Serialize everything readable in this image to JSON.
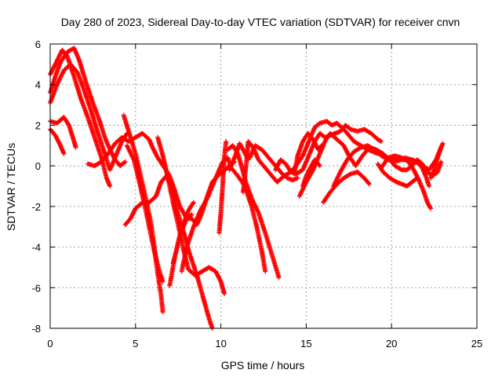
{
  "chart_data": {
    "type": "scatter",
    "title": "Day 280 of 2023, Sidereal Day-to-day VTEC variation (SDTVAR) for receiver cnvn",
    "xlabel": "GPS time / hours",
    "ylabel": "SDTVAR / TECUs",
    "xlim": [
      0,
      25
    ],
    "ylim": [
      -8,
      6
    ],
    "x_ticks": [
      0,
      5,
      10,
      15,
      20,
      25
    ],
    "y_ticks": [
      -8,
      -6,
      -4,
      -2,
      0,
      2,
      4,
      6
    ],
    "grid": true,
    "marker": "plus",
    "color": "#ff0000",
    "tracks": [
      [
        [
          0.0,
          4.5
        ],
        [
          0.3,
          5.0
        ],
        [
          0.7,
          5.7
        ],
        [
          1.0,
          5.4
        ],
        [
          1.4,
          4.4
        ],
        [
          1.8,
          3.3
        ],
        [
          2.2,
          2.4
        ],
        [
          2.6,
          1.4
        ],
        [
          3.0,
          0.4
        ],
        [
          3.3,
          -0.6
        ],
        [
          3.5,
          -1.0
        ]
      ],
      [
        [
          0.0,
          3.6
        ],
        [
          0.3,
          4.4
        ],
        [
          0.6,
          5.1
        ],
        [
          1.0,
          5.6
        ],
        [
          1.4,
          5.8
        ],
        [
          1.7,
          5.2
        ],
        [
          2.1,
          4.1
        ],
        [
          2.5,
          3.1
        ],
        [
          2.9,
          2.2
        ],
        [
          3.2,
          1.4
        ],
        [
          3.5,
          0.8
        ],
        [
          3.8,
          0.3
        ],
        [
          4.1,
          0.0
        ],
        [
          4.4,
          0.2
        ]
      ],
      [
        [
          0.0,
          3.1
        ],
        [
          0.4,
          4.0
        ],
        [
          0.8,
          4.7
        ],
        [
          1.2,
          5.0
        ],
        [
          1.6,
          4.6
        ],
        [
          2.0,
          3.7
        ],
        [
          2.4,
          2.7
        ],
        [
          2.8,
          1.6
        ],
        [
          3.2,
          0.6
        ],
        [
          3.5,
          -0.2
        ],
        [
          3.8,
          0.4
        ],
        [
          4.2,
          1.2
        ],
        [
          4.5,
          1.6
        ]
      ],
      [
        [
          0.0,
          2.2
        ],
        [
          0.4,
          2.1
        ],
        [
          0.8,
          2.4
        ],
        [
          1.1,
          2.0
        ],
        [
          1.4,
          1.2
        ],
        [
          1.5,
          0.9
        ]
      ],
      [
        [
          0.0,
          1.8
        ],
        [
          0.3,
          1.5
        ],
        [
          0.6,
          1.0
        ],
        [
          0.8,
          0.6
        ]
      ],
      [
        [
          2.2,
          0.1
        ],
        [
          2.6,
          0.0
        ],
        [
          3.0,
          0.2
        ],
        [
          3.4,
          0.6
        ],
        [
          3.8,
          1.1
        ],
        [
          4.2,
          1.4
        ],
        [
          4.6,
          1.2
        ],
        [
          5.0,
          1.4
        ],
        [
          5.4,
          1.6
        ],
        [
          5.8,
          1.3
        ],
        [
          6.0,
          0.9
        ],
        [
          6.3,
          0.4
        ],
        [
          6.7,
          -0.1
        ],
        [
          7.0,
          -0.5
        ],
        [
          7.3,
          -1.2
        ],
        [
          7.6,
          -2.0
        ],
        [
          8.0,
          -2.6
        ],
        [
          8.3,
          -2.4
        ]
      ],
      [
        [
          4.3,
          2.5
        ],
        [
          4.6,
          1.7
        ],
        [
          5.0,
          0.6
        ],
        [
          5.3,
          -0.5
        ],
        [
          5.6,
          -1.6
        ],
        [
          5.9,
          -2.8
        ],
        [
          6.1,
          -4.0
        ],
        [
          6.3,
          -5.3
        ],
        [
          6.5,
          -6.4
        ],
        [
          6.6,
          -7.2
        ]
      ],
      [
        [
          4.5,
          1.0
        ],
        [
          4.9,
          0.3
        ],
        [
          5.2,
          -0.7
        ],
        [
          5.5,
          -1.8
        ],
        [
          5.8,
          -3.0
        ],
        [
          6.1,
          -4.2
        ],
        [
          6.4,
          -5.2
        ],
        [
          6.6,
          -5.7
        ]
      ],
      [
        [
          4.4,
          -2.9
        ],
        [
          4.7,
          -2.6
        ],
        [
          5.0,
          -2.1
        ],
        [
          5.4,
          -1.8
        ],
        [
          5.8,
          -1.8
        ],
        [
          6.2,
          -1.5
        ],
        [
          6.5,
          -0.8
        ],
        [
          6.8,
          -0.5
        ],
        [
          7.1,
          -1.0
        ],
        [
          7.4,
          -2.1
        ],
        [
          7.8,
          -3.2
        ],
        [
          8.2,
          -4.4
        ],
        [
          8.6,
          -5.4
        ],
        [
          9.0,
          -6.6
        ],
        [
          9.3,
          -7.5
        ],
        [
          9.5,
          -8.0
        ]
      ],
      [
        [
          6.3,
          1.4
        ],
        [
          6.6,
          0.5
        ],
        [
          6.9,
          -0.6
        ],
        [
          7.2,
          -1.8
        ],
        [
          7.5,
          -2.9
        ],
        [
          7.8,
          -4.1
        ],
        [
          8.1,
          -5.1
        ],
        [
          8.5,
          -5.4
        ],
        [
          8.9,
          -5.2
        ],
        [
          9.3,
          -5.0
        ],
        [
          9.7,
          -5.2
        ],
        [
          10.0,
          -5.7
        ],
        [
          10.2,
          -6.3
        ]
      ],
      [
        [
          7.0,
          -5.9
        ],
        [
          7.3,
          -4.5
        ],
        [
          7.6,
          -3.4
        ],
        [
          8.0,
          -2.6
        ],
        [
          8.3,
          -2.6
        ],
        [
          8.6,
          -2.9
        ],
        [
          8.9,
          -2.3
        ],
        [
          9.2,
          -1.5
        ],
        [
          9.5,
          -0.8
        ],
        [
          9.8,
          -0.5
        ],
        [
          10.1,
          -0.3
        ],
        [
          10.5,
          0.0
        ],
        [
          10.8,
          0.2
        ]
      ],
      [
        [
          7.2,
          -4.8
        ],
        [
          7.5,
          -3.8
        ],
        [
          7.8,
          -2.9
        ],
        [
          8.1,
          -2.2
        ],
        [
          8.4,
          -1.8
        ]
      ],
      [
        [
          7.7,
          -5.2
        ],
        [
          8.0,
          -4.0
        ],
        [
          8.4,
          -3.0
        ],
        [
          8.8,
          -2.2
        ],
        [
          9.2,
          -1.6
        ],
        [
          9.5,
          -1.0
        ],
        [
          9.8,
          -0.4
        ],
        [
          10.1,
          0.2
        ],
        [
          10.4,
          0.4
        ],
        [
          10.6,
          -0.1
        ],
        [
          11.0,
          -0.5
        ],
        [
          11.4,
          -1.0
        ],
        [
          11.8,
          -2.0
        ],
        [
          12.1,
          -3.0
        ],
        [
          12.4,
          -4.2
        ],
        [
          12.6,
          -5.2
        ]
      ],
      [
        [
          9.9,
          -3.3
        ],
        [
          10.0,
          -2.3
        ],
        [
          10.1,
          -1.0
        ],
        [
          10.2,
          0.4
        ],
        [
          10.3,
          1.2
        ]
      ],
      [
        [
          10.4,
          0.8
        ],
        [
          10.7,
          1.0
        ],
        [
          11.0,
          0.6
        ],
        [
          11.2,
          0.0
        ],
        [
          11.5,
          -0.9
        ],
        [
          11.8,
          -1.6
        ],
        [
          12.2,
          -2.3
        ],
        [
          12.6,
          -3.3
        ],
        [
          13.0,
          -4.4
        ],
        [
          13.4,
          -5.5
        ]
      ],
      [
        [
          10.5,
          -0.2
        ],
        [
          10.8,
          0.4
        ],
        [
          11.1,
          1.1
        ],
        [
          11.3,
          0.8
        ],
        [
          11.6,
          0.3
        ]
      ],
      [
        [
          11.3,
          -1.3
        ],
        [
          11.5,
          0.2
        ],
        [
          11.6,
          1.2
        ],
        [
          11.9,
          0.9
        ],
        [
          12.2,
          0.3
        ],
        [
          12.6,
          -0.1
        ],
        [
          13.0,
          -0.5
        ],
        [
          13.3,
          -0.8
        ],
        [
          13.7,
          -0.5
        ],
        [
          14.1,
          -0.3
        ],
        [
          14.4,
          0.0
        ],
        [
          14.8,
          0.5
        ],
        [
          15.2,
          1.3
        ],
        [
          15.5,
          1.9
        ],
        [
          15.8,
          2.1
        ],
        [
          16.2,
          2.2
        ],
        [
          16.5,
          2.0
        ],
        [
          16.8,
          2.1
        ],
        [
          17.2,
          1.8
        ],
        [
          17.5,
          1.5
        ],
        [
          17.8,
          1.2
        ],
        [
          18.2,
          1.0
        ],
        [
          18.6,
          0.8
        ],
        [
          18.9,
          0.7
        ],
        [
          19.2,
          0.6
        ]
      ],
      [
        [
          11.7,
          0.4
        ],
        [
          12.0,
          1.0
        ],
        [
          12.4,
          0.8
        ],
        [
          12.8,
          0.4
        ],
        [
          13.2,
          0.0
        ],
        [
          13.6,
          -0.4
        ],
        [
          13.9,
          -0.6
        ],
        [
          14.2,
          -0.7
        ],
        [
          14.5,
          -0.6
        ]
      ],
      [
        [
          13.2,
          -0.2
        ],
        [
          13.5,
          0.3
        ],
        [
          13.8,
          0.1
        ],
        [
          14.1,
          -0.3
        ],
        [
          14.4,
          -0.4
        ],
        [
          14.8,
          -0.2
        ],
        [
          15.2,
          0.6
        ],
        [
          15.5,
          1.2
        ],
        [
          15.8,
          1.6
        ],
        [
          16.1,
          1.4
        ],
        [
          16.4,
          1.5
        ],
        [
          16.7,
          1.6
        ],
        [
          17.0,
          1.7
        ],
        [
          17.3,
          2.0
        ],
        [
          17.6,
          1.8
        ],
        [
          18.0,
          1.7
        ],
        [
          18.4,
          1.8
        ],
        [
          18.8,
          1.6
        ],
        [
          19.2,
          1.3
        ],
        [
          19.4,
          1.2
        ]
      ],
      [
        [
          14.3,
          -0.4
        ],
        [
          14.5,
          0.5
        ],
        [
          14.8,
          1.2
        ],
        [
          15.1,
          1.6
        ],
        [
          15.4,
          1.3
        ],
        [
          15.7,
          0.8
        ],
        [
          15.9,
          1.0
        ]
      ],
      [
        [
          14.8,
          -1.0
        ],
        [
          15.0,
          -0.5
        ],
        [
          15.3,
          0.0
        ],
        [
          15.5,
          0.3
        ],
        [
          15.8,
          0.0
        ]
      ],
      [
        [
          14.6,
          -1.5
        ],
        [
          15.0,
          -0.8
        ],
        [
          15.4,
          -0.2
        ],
        [
          15.8,
          0.6
        ],
        [
          16.1,
          1.2
        ],
        [
          16.4,
          1.6
        ],
        [
          16.8,
          1.3
        ],
        [
          17.2,
          1.0
        ],
        [
          17.5,
          0.5
        ],
        [
          17.9,
          0.0
        ],
        [
          18.3,
          0.5
        ],
        [
          18.7,
          0.9
        ],
        [
          19.1,
          0.8
        ],
        [
          19.5,
          0.6
        ],
        [
          19.9,
          0.3
        ],
        [
          20.2,
          0.0
        ],
        [
          20.6,
          -0.2
        ],
        [
          20.9,
          -0.2
        ],
        [
          21.2,
          0.0
        ],
        [
          21.5,
          0.3
        ],
        [
          21.8,
          0.1
        ],
        [
          22.1,
          -0.3
        ],
        [
          22.4,
          -0.5
        ],
        [
          22.7,
          -0.3
        ],
        [
          22.9,
          0.2
        ]
      ],
      [
        [
          16.0,
          -1.8
        ],
        [
          16.4,
          -1.3
        ],
        [
          16.8,
          -0.9
        ],
        [
          17.2,
          -0.6
        ],
        [
          17.6,
          -0.4
        ],
        [
          18.0,
          -0.3
        ],
        [
          18.4,
          -0.6
        ],
        [
          18.7,
          -0.9
        ]
      ],
      [
        [
          16.6,
          -1.0
        ],
        [
          17.0,
          -0.3
        ],
        [
          17.4,
          0.3
        ],
        [
          17.8,
          0.7
        ],
        [
          18.2,
          0.9
        ],
        [
          18.6,
          1.0
        ],
        [
          19.0,
          0.8
        ],
        [
          19.4,
          0.5
        ],
        [
          19.8,
          0.3
        ],
        [
          20.2,
          0.2
        ],
        [
          20.6,
          0.3
        ],
        [
          21.0,
          0.3
        ],
        [
          21.4,
          0.2
        ],
        [
          21.8,
          0.0
        ],
        [
          22.2,
          -0.2
        ],
        [
          22.6,
          0.3
        ],
        [
          22.9,
          0.9
        ]
      ],
      [
        [
          19.2,
          0.1
        ],
        [
          19.5,
          -0.3
        ],
        [
          19.9,
          -0.6
        ],
        [
          20.3,
          -0.8
        ],
        [
          20.6,
          -0.9
        ],
        [
          20.9,
          -1.0
        ],
        [
          21.2,
          -0.8
        ],
        [
          21.5,
          -0.6
        ]
      ],
      [
        [
          19.4,
          -0.1
        ],
        [
          19.8,
          0.4
        ],
        [
          20.2,
          0.5
        ],
        [
          20.6,
          0.4
        ],
        [
          21.0,
          0.2
        ],
        [
          21.3,
          -0.2
        ],
        [
          21.6,
          -0.7
        ],
        [
          21.9,
          -1.3
        ],
        [
          22.1,
          -1.8
        ],
        [
          22.3,
          -2.1
        ]
      ],
      [
        [
          20.0,
          0.4
        ],
        [
          20.4,
          0.3
        ],
        [
          20.8,
          0.4
        ],
        [
          21.2,
          0.3
        ],
        [
          21.5,
          0.2
        ],
        [
          21.8,
          -0.1
        ],
        [
          22.0,
          -0.5
        ],
        [
          22.2,
          -1.0
        ]
      ],
      [
        [
          22.3,
          -0.6
        ],
        [
          22.5,
          -0.2
        ],
        [
          22.7,
          0.4
        ],
        [
          22.9,
          0.9
        ],
        [
          23.0,
          1.1
        ]
      ]
    ]
  }
}
